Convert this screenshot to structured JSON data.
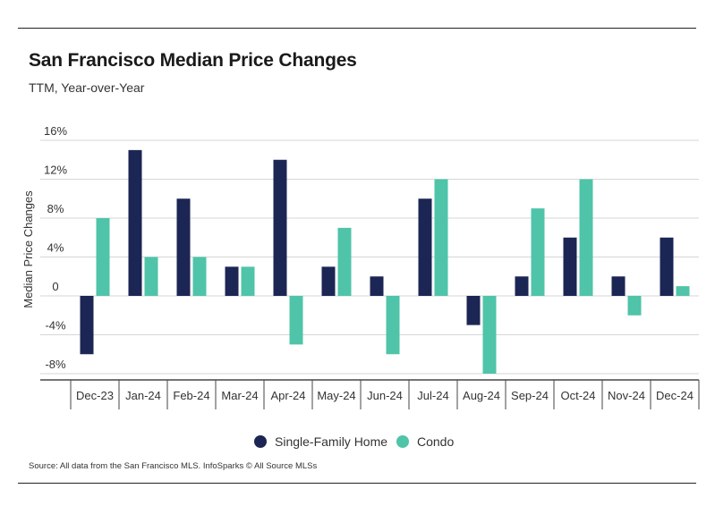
{
  "header": {
    "title": "San Francisco Median Price Changes",
    "subtitle": "TTM, Year-over-Year"
  },
  "footer": {
    "source": "Source:  All data from the San Francisco MLS. InfoSparks © All Source MLSs"
  },
  "colors": {
    "single_family": "#1c2654",
    "condo": "#4fc4a9"
  },
  "chart_data": {
    "type": "bar",
    "title": "San Francisco Median Price Changes",
    "subtitle": "TTM, Year-over-Year",
    "xlabel": "",
    "ylabel": "Median Price Changes",
    "ylim": [
      -8,
      16
    ],
    "yticks": [
      16,
      12,
      8,
      4,
      0,
      -4,
      -8
    ],
    "ytick_labels": [
      "16%",
      "12%",
      "8%",
      "4%",
      "0",
      "-4%",
      "-8%"
    ],
    "grid": true,
    "legend_position": "bottom-center",
    "categories": [
      "Dec-23",
      "Jan-24",
      "Feb-24",
      "Mar-24",
      "Apr-24",
      "May-24",
      "Jun-24",
      "Jul-24",
      "Aug-24",
      "Sep-24",
      "Oct-24",
      "Nov-24",
      "Dec-24"
    ],
    "series": [
      {
        "name": "Single-Family Home",
        "values": [
          -6,
          15,
          10,
          3,
          14,
          3,
          2,
          10,
          -3,
          2,
          6,
          2,
          6
        ]
      },
      {
        "name": "Condo",
        "values": [
          8,
          4,
          4,
          3,
          -5,
          7,
          -6,
          12,
          -8,
          9,
          12,
          -2,
          1
        ]
      }
    ]
  }
}
